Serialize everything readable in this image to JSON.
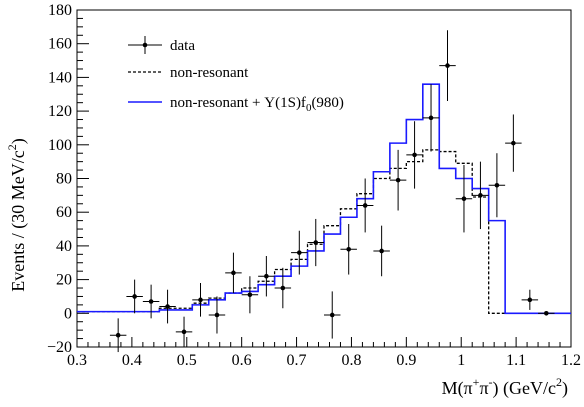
{
  "chart_data": {
    "type": "histogram",
    "xlim": [
      0.3,
      1.2
    ],
    "ylim": [
      -20,
      180
    ],
    "x_ticks": [
      0.3,
      0.4,
      0.5,
      0.6,
      0.7,
      0.8,
      0.9,
      1.0,
      1.1,
      1.2
    ],
    "x_tick_labels": [
      "0.3",
      "0.4",
      "0.5",
      "0.6",
      "0.7",
      "0.8",
      "0.9",
      "1",
      "1.1",
      "1.2"
    ],
    "y_ticks": [
      -20,
      0,
      20,
      40,
      60,
      80,
      100,
      120,
      140,
      160,
      180
    ],
    "y_tick_labels": [
      "−20",
      "0",
      "20",
      "40",
      "60",
      "80",
      "100",
      "120",
      "140",
      "160",
      "180"
    ],
    "xlabel": {
      "main": "M(π",
      "sup1": "+",
      "mid": "π",
      "sup2": "-",
      "tail": ") (GeV/c",
      "sup3": "2",
      "end": ")"
    },
    "ylabel": {
      "main": "Events / (30 MeV/c",
      "sup": "2",
      "end": ")"
    },
    "bin_width": 0.03,
    "bin_edges_start": 0.3,
    "legend": [
      {
        "label": "data",
        "style": "marker",
        "color": "#000000"
      },
      {
        "label": "non-resonant",
        "style": "dashed",
        "color": "#000000"
      },
      {
        "label_parts": [
          "non-resonant + Υ(1S)f",
          "0",
          "(980)"
        ],
        "style": "solid",
        "color": "#1a1aff"
      }
    ],
    "data_points": [
      {
        "x": 0.375,
        "y": -13,
        "err": 10
      },
      {
        "x": 0.405,
        "y": 10,
        "err": 10
      },
      {
        "x": 0.435,
        "y": 7,
        "err": 10
      },
      {
        "x": 0.465,
        "y": 4,
        "err": 10
      },
      {
        "x": 0.495,
        "y": -11,
        "err": 9
      },
      {
        "x": 0.525,
        "y": 8,
        "err": 10
      },
      {
        "x": 0.555,
        "y": -1,
        "err": 11
      },
      {
        "x": 0.585,
        "y": 24,
        "err": 12
      },
      {
        "x": 0.615,
        "y": 11,
        "err": 11
      },
      {
        "x": 0.645,
        "y": 22,
        "err": 12
      },
      {
        "x": 0.675,
        "y": 15,
        "err": 12
      },
      {
        "x": 0.705,
        "y": 36,
        "err": 13
      },
      {
        "x": 0.735,
        "y": 42,
        "err": 14
      },
      {
        "x": 0.765,
        "y": -1,
        "err": 14
      },
      {
        "x": 0.795,
        "y": 38,
        "err": 15
      },
      {
        "x": 0.825,
        "y": 64,
        "err": 16
      },
      {
        "x": 0.855,
        "y": 37,
        "err": 15
      },
      {
        "x": 0.885,
        "y": 79,
        "err": 18
      },
      {
        "x": 0.915,
        "y": 94,
        "err": 20
      },
      {
        "x": 0.945,
        "y": 116,
        "err": 20
      },
      {
        "x": 0.975,
        "y": 147,
        "err": 21
      },
      {
        "x": 1.005,
        "y": 68,
        "err": 20
      },
      {
        "x": 1.035,
        "y": 70,
        "err": 20
      },
      {
        "x": 1.065,
        "y": 76,
        "err": 19
      },
      {
        "x": 1.095,
        "y": 101,
        "err": 17
      },
      {
        "x": 1.125,
        "y": 8,
        "err": 6
      },
      {
        "x": 1.155,
        "y": 0,
        "err": 1
      }
    ],
    "non_resonant": [
      1,
      1,
      1,
      1,
      1,
      3,
      3,
      6,
      9,
      12,
      15,
      19,
      26,
      32,
      41,
      52,
      62,
      71,
      80,
      86,
      90,
      97,
      96,
      89,
      69,
      0,
      0,
      0,
      0,
      0
    ],
    "total_fit": [
      1,
      1,
      1,
      1,
      1,
      2,
      2,
      5,
      8,
      12,
      13,
      17,
      22,
      28,
      37,
      47,
      57,
      68,
      84,
      101,
      115,
      136,
      86,
      80,
      74,
      55,
      0,
      0,
      0,
      0
    ]
  }
}
